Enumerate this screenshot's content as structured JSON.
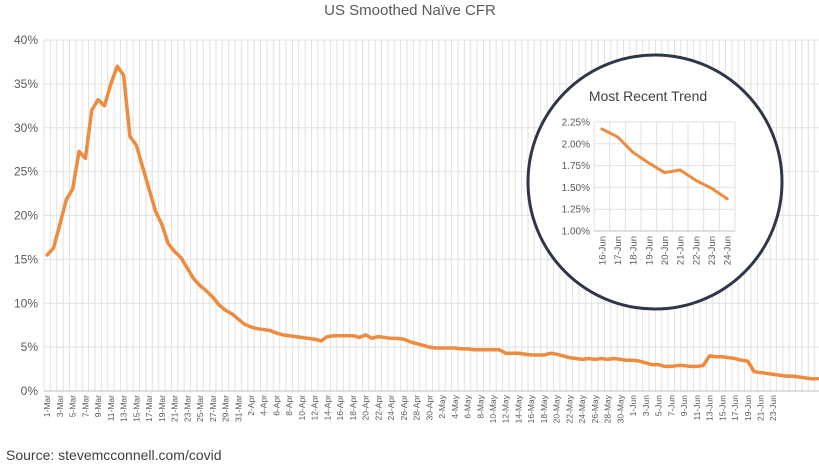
{
  "source": "Source: stevemcconnell.com/covid",
  "colors": {
    "line": "#ED8B3F",
    "grid": "#E1E1E1",
    "text": "#595959",
    "circle": "#2F3648"
  },
  "chart_data": [
    {
      "type": "line",
      "title": "US Smoothed Naïve CFR",
      "ylim": [
        0,
        40
      ],
      "yticks": [
        0,
        5,
        10,
        15,
        20,
        25,
        30,
        35,
        40
      ],
      "ytick_labels": [
        "0%",
        "5%",
        "10%",
        "15%",
        "20%",
        "25%",
        "30%",
        "35%",
        "40%"
      ],
      "xtick_labels": [
        "1-Mar",
        "3-Mar",
        "5-Mar",
        "7-Mar",
        "9-Mar",
        "11-Mar",
        "13-Mar",
        "15-Mar",
        "17-Mar",
        "19-Mar",
        "21-Mar",
        "23-Mar",
        "25-Mar",
        "27-Mar",
        "29-Mar",
        "31-Mar",
        "2-Apr",
        "4-Apr",
        "6-Apr",
        "8-Apr",
        "10-Apr",
        "12-Apr",
        "14-Apr",
        "16-Apr",
        "18-Apr",
        "20-Apr",
        "22-Apr",
        "24-Apr",
        "26-Apr",
        "28-Apr",
        "30-Apr",
        "2-May",
        "4-May",
        "6-May",
        "8-May",
        "10-May",
        "12-May",
        "14-May",
        "16-May",
        "18-May",
        "20-May",
        "22-May",
        "24-May",
        "26-May",
        "28-May",
        "30-May",
        "1-Jun",
        "3-Jun",
        "5-Jun",
        "7-Jun",
        "9-Jun",
        "11-Jun",
        "13-Jun",
        "15-Jun",
        "17-Jun",
        "19-Jun",
        "21-Jun",
        "23-Jun"
      ],
      "grid": true,
      "series": [
        {
          "values": [
            15.5,
            16.3,
            19,
            21.8,
            23,
            27.3,
            26.5,
            32,
            33.2,
            32.5,
            35,
            37,
            36,
            29,
            28,
            25.5,
            23,
            20.5,
            19,
            16.8,
            15.9,
            15.2,
            14,
            12.8,
            12,
            11.4,
            10.7,
            9.8,
            9.2,
            8.8,
            8.2,
            7.6,
            7.3,
            7.1,
            7.0,
            6.9,
            6.6,
            6.4,
            6.3,
            6.2,
            6.1,
            6.0,
            5.9,
            5.7,
            6.2,
            6.3,
            6.3,
            6.3,
            6.3,
            6.1,
            6.4,
            6.0,
            6.2,
            6.1,
            6.0,
            6.0,
            5.9,
            5.6,
            5.4,
            5.2,
            5.0,
            4.9,
            4.9,
            4.9,
            4.9,
            4.8,
            4.8,
            4.7,
            4.7,
            4.7,
            4.7,
            4.7,
            4.3,
            4.3,
            4.3,
            4.2,
            4.1,
            4.1,
            4.1,
            4.3,
            4.2,
            4.0,
            3.8,
            3.7,
            3.6,
            3.7,
            3.6,
            3.7,
            3.6,
            3.7,
            3.6,
            3.5,
            3.5,
            3.4,
            3.2,
            3.0,
            3.0,
            2.8,
            2.8,
            2.9,
            2.9,
            2.8,
            2.8,
            2.9,
            4.0,
            3.9,
            3.9,
            3.8,
            3.7,
            3.5,
            3.4,
            2.2,
            2.1,
            2.0,
            1.9,
            1.8,
            1.7,
            1.7,
            1.6,
            1.5,
            1.4,
            1.4
          ]
        }
      ]
    },
    {
      "type": "line",
      "title": "Most Recent Trend",
      "categories": [
        "16-Jun",
        "17-Jun",
        "18-Jun",
        "19-Jun",
        "20-Jun",
        "21-Jun",
        "22-Jun",
        "23-Jun",
        "24-Jun"
      ],
      "ylim": [
        1.0,
        2.25
      ],
      "yticks": [
        1.0,
        1.25,
        1.5,
        1.75,
        2.0,
        2.25
      ],
      "ytick_labels": [
        "1.00%",
        "1.25%",
        "1.50%",
        "1.75%",
        "2.00%",
        "2.25%"
      ],
      "grid": true,
      "series": [
        {
          "values": [
            2.17,
            2.08,
            1.9,
            1.78,
            1.67,
            1.7,
            1.58,
            1.49,
            1.37
          ]
        }
      ]
    }
  ]
}
